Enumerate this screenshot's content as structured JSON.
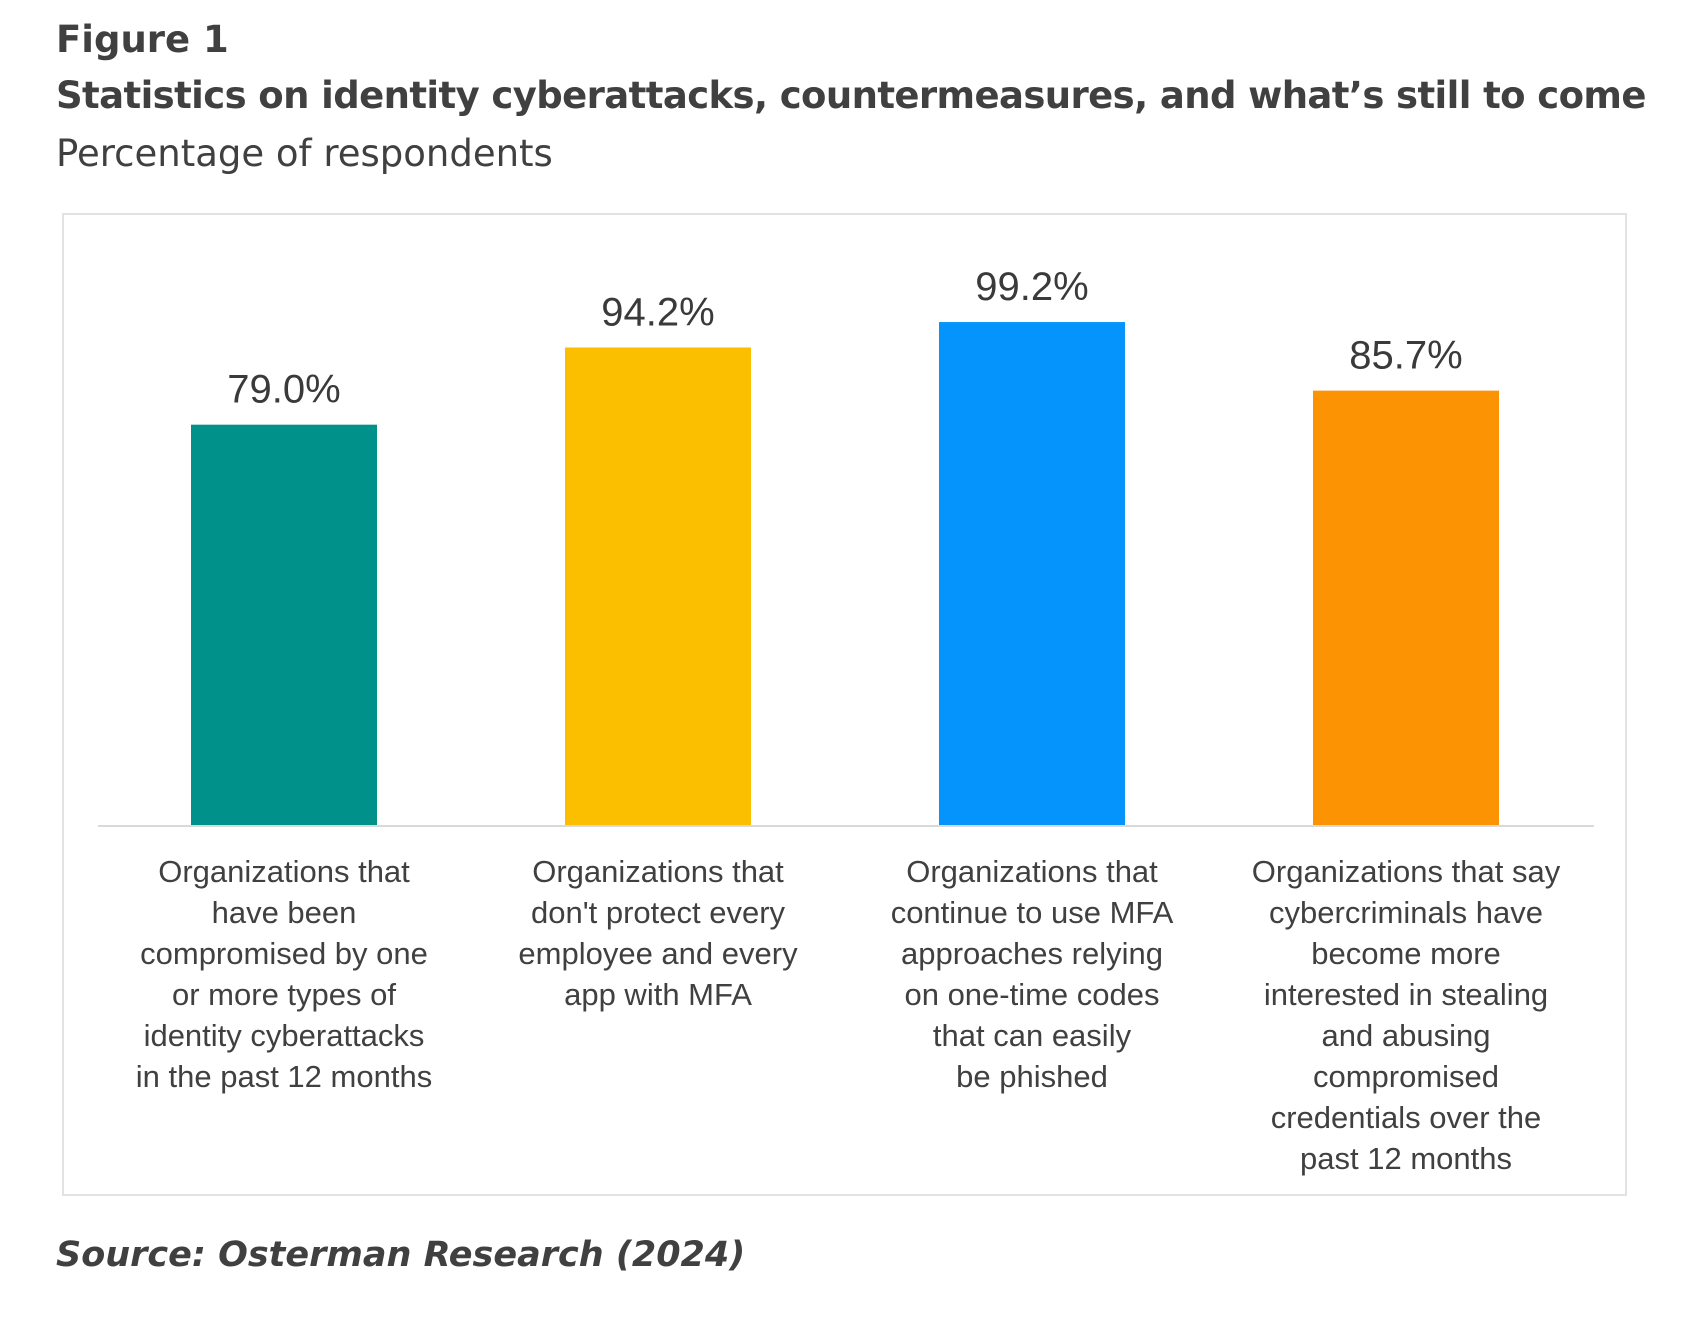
{
  "figure": {
    "label": "Figure 1",
    "title": "Statistics on identity cyberattacks, countermeasures, and what’s still to come",
    "subtitle": "Percentage of respondents",
    "source": "Source: Osterman Research (2024)"
  },
  "chart_data": {
    "type": "bar",
    "title": "Statistics on identity cyberattacks, countermeasures, and what’s still to come",
    "subtitle": "Percentage of respondents",
    "xlabel": "",
    "ylabel": "",
    "ylim": [
      0,
      100
    ],
    "grid": false,
    "legend": "none",
    "categories": [
      "Organizations that have been compromised by one or more types of identity cyberattacks in the past 12 months",
      "Organizations that don't protect every employee and every app with MFA",
      "Organizations that continue to use MFA approaches relying on one-time codes that can easily be phished",
      "Organizations that say cybercriminals have become more interested in stealing and abusing compromised credentials over the past 12 months"
    ],
    "category_lines": [
      [
        "Organizations that",
        "have been",
        "compromised by one",
        "or more types of",
        "identity cyberattacks",
        "in the past 12 months"
      ],
      [
        "Organizations that",
        "don't protect every",
        "employee and every",
        "app with MFA"
      ],
      [
        "Organizations that",
        "continue to use MFA",
        "approaches relying",
        "on one-time codes",
        "that can easily",
        "be phished"
      ],
      [
        "Organizations that say",
        "cybercriminals have",
        "become more",
        "interested in stealing",
        "and abusing",
        "compromised",
        "credentials over the",
        "past 12 months"
      ]
    ],
    "values": [
      79.0,
      94.2,
      99.2,
      85.7
    ],
    "value_labels": [
      "79.0%",
      "94.2%",
      "99.2%",
      "85.7%"
    ],
    "colors": [
      "#00918a",
      "#fcbf00",
      "#0594fb",
      "#fb9303"
    ],
    "axis_color": "#d9d9d9"
  }
}
